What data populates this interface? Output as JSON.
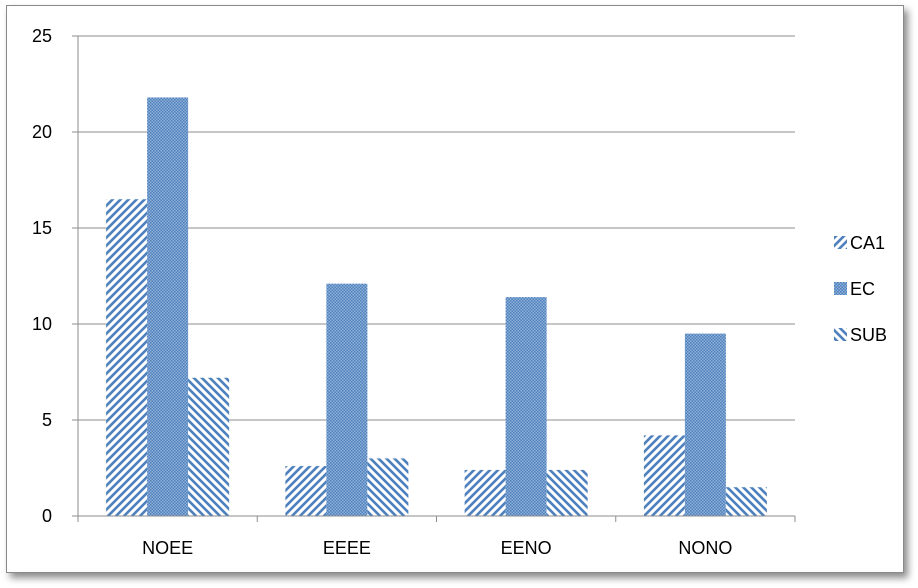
{
  "chart_data": {
    "type": "bar",
    "title": "",
    "xlabel": "",
    "ylabel": "",
    "categories": [
      "NOEE",
      "EEEE",
      "EENO",
      "NONO"
    ],
    "ylim": [
      0,
      25
    ],
    "yticks": [
      0,
      5,
      10,
      15,
      20,
      25
    ],
    "grid": true,
    "legend_position": "right",
    "series": [
      {
        "name": "CA1",
        "values": [
          16.5,
          2.6,
          2.4,
          4.2
        ],
        "pattern": "diagonal-up",
        "color": "#4f81bd"
      },
      {
        "name": "EC",
        "values": [
          21.8,
          12.1,
          11.4,
          9.5
        ],
        "pattern": "fine-dots",
        "color": "#4f81bd"
      },
      {
        "name": "SUB",
        "values": [
          7.2,
          3.0,
          2.4,
          1.5
        ],
        "pattern": "diagonal-down",
        "color": "#4f81bd"
      }
    ]
  }
}
